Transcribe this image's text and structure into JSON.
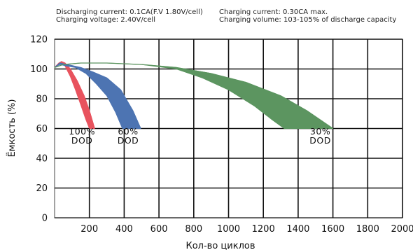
{
  "header": {
    "discharging_current": "Discharging current: 0.1CA(F.V 1.80V/cell)",
    "charging_voltage": "Charging voltage: 2.40V/cell",
    "charging_current": "Charging current: 0.30CA max.",
    "charging_volume": "Charging volume: 103-105% of discharge capacity"
  },
  "chart_data": {
    "type": "area",
    "xlabel": "Кол-во циклов",
    "ylabel": "Ёмкость (%)",
    "xlim": [
      0,
      2000
    ],
    "ylim": [
      0,
      120
    ],
    "x_ticks": [
      200,
      400,
      600,
      800,
      1000,
      1200,
      1400,
      1600,
      1800,
      2000
    ],
    "y_ticks": [
      0,
      20,
      40,
      60,
      80,
      100,
      120
    ],
    "grid": true,
    "series": [
      {
        "name": "100% DOD",
        "color": "#e8535e",
        "label_lines": [
          "100%",
          "DOD"
        ],
        "upper": [
          [
            0,
            101
          ],
          [
            25,
            104
          ],
          [
            40,
            105
          ],
          [
            60,
            104
          ],
          [
            90,
            100
          ],
          [
            130,
            92
          ],
          [
            170,
            82
          ],
          [
            200,
            72
          ],
          [
            230,
            60
          ]
        ],
        "lower": [
          [
            0,
            101
          ],
          [
            25,
            103
          ],
          [
            40,
            104
          ],
          [
            60,
            102
          ],
          [
            90,
            95
          ],
          [
            120,
            86
          ],
          [
            150,
            76
          ],
          [
            180,
            66
          ],
          [
            200,
            60
          ]
        ]
      },
      {
        "name": "60% DOD",
        "color": "#4d74b2",
        "label_lines": [
          "60%",
          "DOD"
        ],
        "upper": [
          [
            0,
            101
          ],
          [
            30,
            104
          ],
          [
            70,
            103
          ],
          [
            150,
            101
          ],
          [
            220,
            98
          ],
          [
            300,
            94
          ],
          [
            380,
            86
          ],
          [
            450,
            72
          ],
          [
            495,
            60
          ]
        ],
        "lower": [
          [
            0,
            101
          ],
          [
            30,
            103
          ],
          [
            70,
            102
          ],
          [
            120,
            101
          ],
          [
            180,
            97
          ],
          [
            240,
            90
          ],
          [
            300,
            82
          ],
          [
            350,
            71
          ],
          [
            390,
            60
          ]
        ]
      },
      {
        "name": "30% DOD",
        "color": "#5c9560",
        "label_lines": [
          "30%",
          "DOD"
        ],
        "upper": [
          [
            0,
            101
          ],
          [
            50,
            103
          ],
          [
            150,
            104
          ],
          [
            300,
            104
          ],
          [
            500,
            103
          ],
          [
            700,
            101
          ],
          [
            900,
            97
          ],
          [
            1100,
            91
          ],
          [
            1300,
            82
          ],
          [
            1450,
            72
          ],
          [
            1600,
            60
          ]
        ],
        "lower": [
          [
            0,
            101
          ],
          [
            50,
            103
          ],
          [
            150,
            104
          ],
          [
            300,
            104
          ],
          [
            500,
            103
          ],
          [
            700,
            100
          ],
          [
            850,
            94
          ],
          [
            1000,
            86
          ],
          [
            1150,
            75
          ],
          [
            1250,
            66
          ],
          [
            1320,
            60
          ]
        ]
      }
    ]
  }
}
